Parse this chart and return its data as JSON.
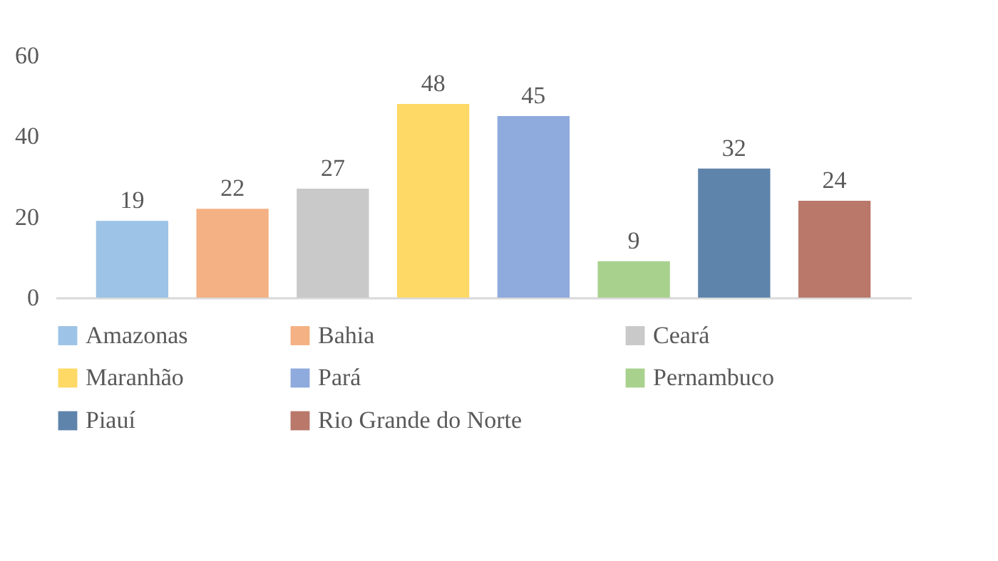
{
  "chart_data": {
    "type": "bar",
    "categories": [
      null
    ],
    "series": [
      {
        "name": "Amazonas",
        "color": "#9dc3e6",
        "values": [
          19
        ]
      },
      {
        "name": "Bahia",
        "color": "#f4b183",
        "values": [
          22
        ]
      },
      {
        "name": "Ceará",
        "color": "#c9c9c9",
        "values": [
          27
        ]
      },
      {
        "name": "Maranhão",
        "color": "#ffd966",
        "values": [
          48
        ]
      },
      {
        "name": "Pará",
        "color": "#8faadc",
        "values": [
          45
        ]
      },
      {
        "name": "Pernambuco",
        "color": "#a9d18e",
        "values": [
          9
        ]
      },
      {
        "name": "Piauí",
        "color": "#5f84ab",
        "values": [
          32
        ]
      },
      {
        "name": "Rio Grande do Norte",
        "color": "#b9786a",
        "values": [
          24
        ]
      }
    ],
    "ylim": [
      0,
      60
    ],
    "yticks": [
      0,
      20,
      40,
      60
    ],
    "grid": false,
    "data_labels": true,
    "legend": "bottom",
    "tick_labels": "y"
  }
}
